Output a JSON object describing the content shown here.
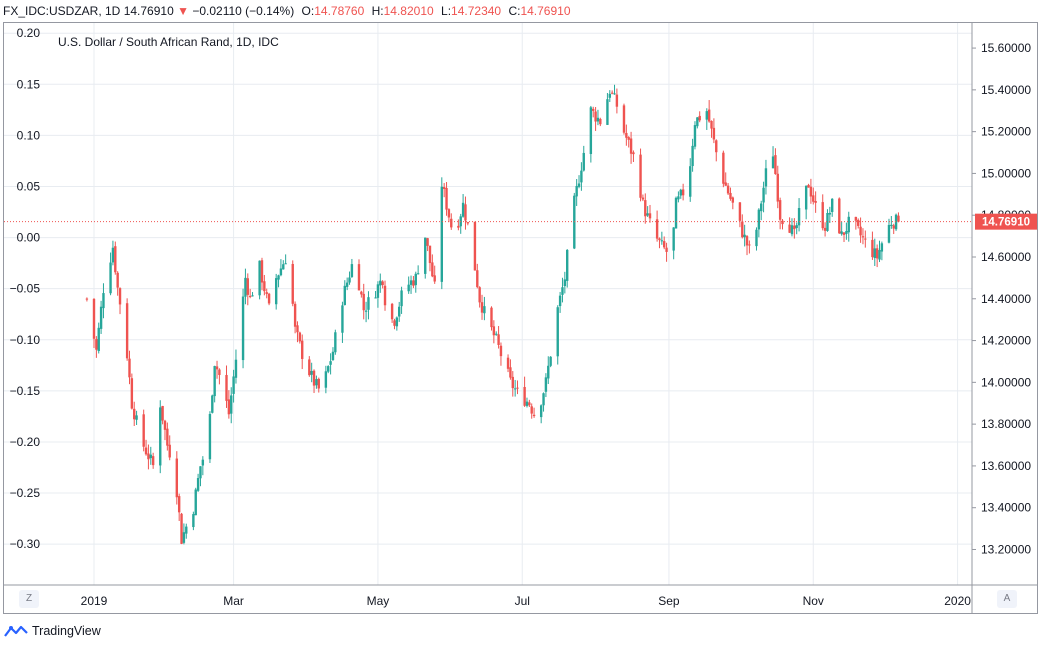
{
  "header": {
    "symbol": "FX_IDC:USDZAR, 1D",
    "last": "14.76910",
    "arrow": "▼",
    "change": "−0.02110 (−0.14%)",
    "o_label": "O:",
    "o_value": "14.78760",
    "h_label": "H:",
    "h_value": "14.82010",
    "l_label": "L:",
    "l_value": "14.72340",
    "c_label": "C:",
    "c_value": "14.76910"
  },
  "controls": {
    "zoom": "Z",
    "auto": "A"
  },
  "brand": {
    "name": "TradingView"
  },
  "colors": {
    "up": "#26a69a",
    "down": "#ef5350",
    "grid": "#e8ecf1",
    "price_line": "#ef5350",
    "text": "#131722"
  },
  "chart_data": {
    "type": "candlestick",
    "title": "U.S. Dollar / South African Rand, 1D, IDC",
    "last_price_label": "14.76910",
    "last_price": 14.7691,
    "left_axis": {
      "ticks": [
        "0.20",
        "0.15",
        "0.10",
        "0.05",
        "0.00",
        "−0.05",
        "−0.10",
        "−0.15",
        "−0.20",
        "−0.25",
        "−0.30"
      ],
      "range": [
        -0.34,
        0.21
      ]
    },
    "right_axis": {
      "ticks": [
        "15.60000",
        "15.40000",
        "15.20000",
        "15.00000",
        "14.80000",
        "14.60000",
        "14.40000",
        "14.20000",
        "14.00000",
        "13.80000",
        "13.60000",
        "13.40000",
        "13.20000"
      ],
      "range": [
        13.03,
        15.72
      ]
    },
    "x_axis": {
      "labels": [
        "2019",
        "Mar",
        "May",
        "Jul",
        "Sep",
        "Nov",
        "2020"
      ],
      "label_days": [
        0,
        59,
        120,
        181,
        243,
        304,
        365
      ]
    },
    "grid": true,
    "path_days": [
      -3,
      1,
      4,
      8,
      10,
      13,
      16,
      20,
      25,
      28,
      31,
      34,
      37,
      42,
      45,
      48,
      51,
      54,
      57,
      61,
      64,
      66,
      70,
      74,
      77,
      82,
      85,
      89,
      93,
      96,
      101,
      105,
      110,
      114,
      117,
      122,
      124,
      127,
      131,
      136,
      140,
      144,
      147,
      152,
      156,
      159,
      163,
      166,
      170,
      173,
      176,
      179,
      184,
      186,
      188,
      191,
      196,
      199,
      202,
      207,
      210,
      214,
      218,
      222,
      224,
      229,
      232,
      237,
      240,
      244,
      246,
      251,
      254,
      259,
      262,
      265,
      270,
      273,
      278,
      281,
      284,
      287,
      290,
      294,
      296,
      299,
      302,
      306,
      309,
      312,
      316,
      320,
      323,
      327,
      331,
      334,
      337,
      340
    ],
    "path_closes": [
      14.4,
      14.15,
      14.45,
      14.65,
      14.45,
      14.25,
      13.9,
      13.72,
      13.6,
      13.9,
      13.7,
      13.6,
      13.25,
      13.4,
      13.6,
      13.7,
      14.1,
      14.0,
      13.85,
      14.2,
      14.5,
      14.4,
      14.55,
      14.35,
      14.5,
      14.62,
      14.25,
      14.1,
      14.0,
      13.95,
      14.15,
      14.4,
      14.6,
      14.35,
      14.4,
      14.5,
      14.3,
      14.3,
      14.45,
      14.5,
      14.7,
      14.45,
      14.95,
      14.7,
      14.85,
      14.7,
      14.4,
      14.3,
      14.2,
      14.1,
      14.0,
      13.95,
      13.9,
      13.85,
      13.88,
      14.0,
      14.35,
      14.5,
      14.8,
      15.1,
      15.3,
      15.25,
      15.4,
      15.3,
      15.2,
      15.05,
      14.85,
      14.7,
      14.65,
      14.6,
      14.85,
      14.95,
      15.25,
      15.3,
      15.15,
      15.0,
      14.85,
      14.75,
      14.6,
      14.8,
      15.0,
      15.1,
      14.8,
      14.75,
      14.7,
      14.85,
      14.95,
      14.8,
      14.75,
      14.85,
      14.7,
      14.78,
      14.72,
      14.65,
      14.6,
      14.7,
      14.77,
      14.7691
    ]
  }
}
